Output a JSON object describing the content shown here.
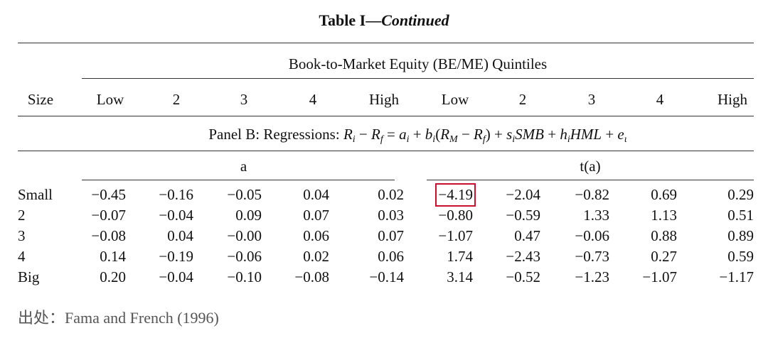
{
  "title": {
    "text": "Table I—",
    "emphasis": "Continued"
  },
  "table": {
    "group_header": "Book-to-Market Equity (BE/ME) Quintiles",
    "columns": [
      "Size",
      "Low",
      "2",
      "3",
      "4",
      "High",
      "Low",
      "2",
      "3",
      "4",
      "High"
    ],
    "panel": {
      "label": "Panel B: Regressions:",
      "formula": [
        {
          "var": "R",
          "sub": "i"
        },
        " − ",
        {
          "var": "R",
          "sub": "f"
        },
        " = ",
        {
          "var": "a",
          "sub": "i"
        },
        " + ",
        {
          "var": "b",
          "sub": "i"
        },
        "(",
        {
          "var": "R",
          "sub": "M"
        },
        " − ",
        {
          "var": "R",
          "sub": "f"
        },
        ") + ",
        {
          "var": "s",
          "sub": "i"
        },
        {
          "var": "SMB"
        },
        " + ",
        {
          "var": "h",
          "sub": "i"
        },
        {
          "var": "HML"
        },
        " + ",
        {
          "var": "e",
          "sub": "ι"
        }
      ]
    },
    "subheaders": [
      "a",
      "t(a)"
    ],
    "rows": [
      {
        "label": "Small",
        "values": [
          "−0.45",
          "−0.16",
          "−0.05",
          "0.04",
          "0.02",
          "−4.19",
          "−2.04",
          "−0.82",
          "0.69",
          "0.29"
        ]
      },
      {
        "label": "2",
        "values": [
          "−0.07",
          "−0.04",
          "0.09",
          "0.07",
          "0.03",
          "−0.80",
          "−0.59",
          "1.33",
          "1.13",
          "0.51"
        ]
      },
      {
        "label": "3",
        "values": [
          "−0.08",
          "0.04",
          "−0.00",
          "0.06",
          "0.07",
          "−1.07",
          "0.47",
          "−0.06",
          "0.88",
          "0.89"
        ]
      },
      {
        "label": "4",
        "values": [
          "0.14",
          "−0.19",
          "−0.06",
          "0.02",
          "0.06",
          "1.74",
          "−2.43",
          "−0.73",
          "0.27",
          "0.59"
        ]
      },
      {
        "label": "Big",
        "values": [
          "0.20",
          "−0.04",
          "−0.10",
          "−0.08",
          "−0.14",
          "3.14",
          "−0.52",
          "−1.23",
          "−1.07",
          "−1.17"
        ]
      }
    ],
    "highlighted_cell": [
      0,
      5
    ]
  },
  "source": "出处：Fama and French (1996)"
}
